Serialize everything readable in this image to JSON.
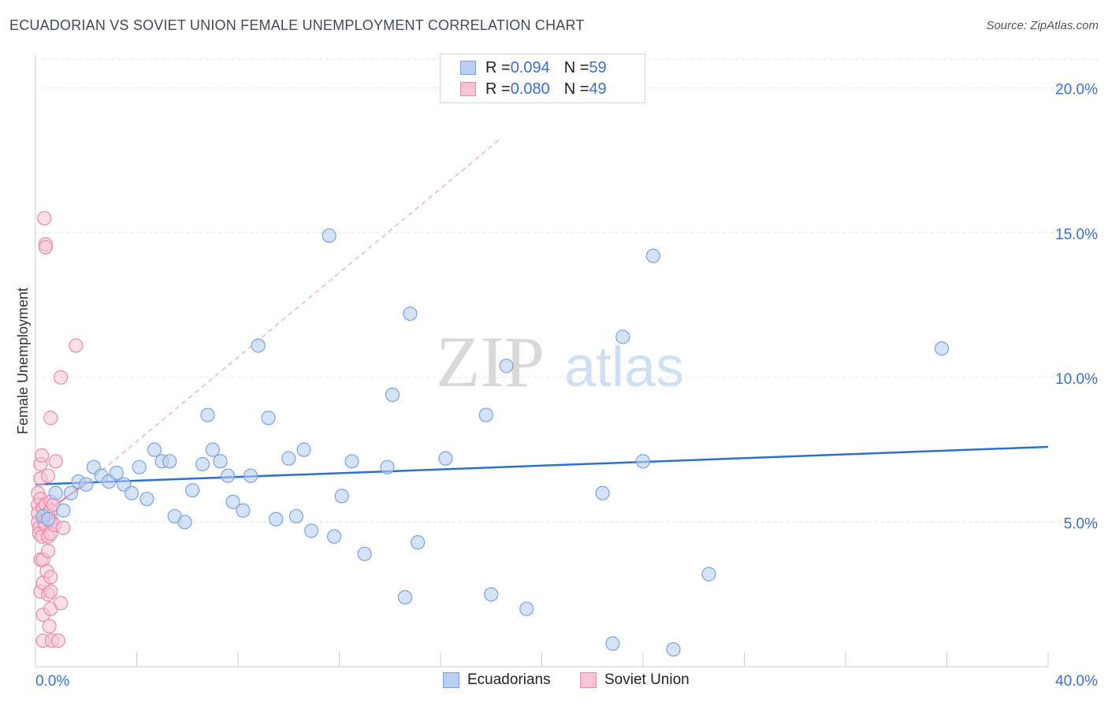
{
  "header": {
    "title": "ECUADORIAN VS SOVIET UNION FEMALE UNEMPLOYMENT CORRELATION CHART",
    "source": "Source: ZipAtlas.com"
  },
  "watermark": {
    "part1": "ZIP",
    "part2": "atlas"
  },
  "legend": {
    "rows": [
      {
        "r_label": "R = ",
        "r_value": "0.094",
        "n_label": "N = ",
        "n_value": "59"
      },
      {
        "r_label": "R = ",
        "r_value": "0.080",
        "n_label": "N = ",
        "n_value": "49"
      }
    ],
    "series": [
      "Ecuadorians",
      "Soviet Union"
    ]
  },
  "colors": {
    "blue_fill": "#b8d1f3",
    "blue_stroke": "#7aa3de",
    "blue_line": "#2f6fce",
    "pink_fill": "#f8c4d5",
    "pink_stroke": "#e68aa9",
    "pink_line": "#e36a94",
    "axis_label": "#3a6fd1",
    "grid": "#e3e3e3"
  },
  "chart_data": {
    "type": "scatter",
    "title": "ECUADORIAN VS SOVIET UNION FEMALE UNEMPLOYMENT CORRELATION CHART",
    "xlabel": "",
    "ylabel": "Female Unemployment",
    "xlim": [
      0,
      40
    ],
    "ylim": [
      0,
      21
    ],
    "x_tick_labels": [
      "0.0%",
      "40.0%"
    ],
    "y_ticks": [
      5,
      10,
      15,
      20
    ],
    "y_tick_labels": [
      "5.0%",
      "10.0%",
      "15.0%",
      "20.0%"
    ],
    "grid": true,
    "series": [
      {
        "name": "Ecuadorians",
        "r": 0.094,
        "n": 59,
        "trend": {
          "x": [
            0,
            40
          ],
          "y": [
            6.3,
            7.6
          ]
        },
        "points": [
          [
            0.3,
            5.2
          ],
          [
            0.5,
            5.1
          ],
          [
            0.8,
            6.0
          ],
          [
            1.1,
            5.4
          ],
          [
            1.4,
            6.0
          ],
          [
            1.7,
            6.4
          ],
          [
            2.0,
            6.3
          ],
          [
            2.3,
            6.9
          ],
          [
            2.6,
            6.6
          ],
          [
            2.9,
            6.4
          ],
          [
            3.2,
            6.7
          ],
          [
            3.5,
            6.3
          ],
          [
            3.8,
            6.0
          ],
          [
            4.1,
            6.9
          ],
          [
            4.4,
            5.8
          ],
          [
            4.7,
            7.5
          ],
          [
            5.0,
            7.1
          ],
          [
            5.3,
            7.1
          ],
          [
            5.5,
            5.2
          ],
          [
            5.9,
            5.0
          ],
          [
            6.2,
            6.1
          ],
          [
            6.6,
            7.0
          ],
          [
            6.8,
            8.7
          ],
          [
            7.0,
            7.5
          ],
          [
            7.3,
            7.1
          ],
          [
            7.6,
            6.6
          ],
          [
            7.8,
            5.7
          ],
          [
            8.2,
            5.4
          ],
          [
            8.5,
            6.6
          ],
          [
            8.8,
            11.1
          ],
          [
            9.2,
            8.6
          ],
          [
            9.5,
            5.1
          ],
          [
            10.0,
            7.2
          ],
          [
            10.3,
            5.2
          ],
          [
            10.6,
            7.5
          ],
          [
            10.9,
            4.7
          ],
          [
            11.6,
            14.9
          ],
          [
            11.8,
            4.5
          ],
          [
            12.1,
            5.9
          ],
          [
            12.5,
            7.1
          ],
          [
            13.0,
            3.9
          ],
          [
            13.9,
            6.9
          ],
          [
            14.1,
            9.4
          ],
          [
            14.6,
            2.4
          ],
          [
            14.8,
            12.2
          ],
          [
            15.1,
            4.3
          ],
          [
            16.2,
            7.2
          ],
          [
            17.8,
            8.7
          ],
          [
            18.0,
            2.5
          ],
          [
            18.6,
            10.4
          ],
          [
            19.4,
            2.0
          ],
          [
            22.4,
            6.0
          ],
          [
            22.8,
            0.8
          ],
          [
            23.2,
            11.4
          ],
          [
            24.0,
            7.1
          ],
          [
            24.4,
            14.2
          ],
          [
            25.2,
            0.6
          ],
          [
            26.6,
            3.2
          ],
          [
            35.8,
            11.0
          ]
        ]
      },
      {
        "name": "Soviet Union",
        "r": 0.08,
        "n": 49,
        "trend": {
          "x": [
            0,
            2.1
          ],
          "y": [
            5.1,
            6.4
          ]
        },
        "trend_extension": {
          "x": [
            2.1,
            18.3
          ],
          "y": [
            6.4,
            18.2
          ]
        },
        "points": [
          [
            0.1,
            6.0
          ],
          [
            0.1,
            5.6
          ],
          [
            0.1,
            5.3
          ],
          [
            0.1,
            5.0
          ],
          [
            0.15,
            4.8
          ],
          [
            0.15,
            4.6
          ],
          [
            0.2,
            6.5
          ],
          [
            0.2,
            7.0
          ],
          [
            0.2,
            3.7
          ],
          [
            0.2,
            2.6
          ],
          [
            0.2,
            5.8
          ],
          [
            0.25,
            7.3
          ],
          [
            0.25,
            4.5
          ],
          [
            0.3,
            5.5
          ],
          [
            0.3,
            2.9
          ],
          [
            0.3,
            3.7
          ],
          [
            0.3,
            1.8
          ],
          [
            0.3,
            0.9
          ],
          [
            0.35,
            15.5
          ],
          [
            0.35,
            5.0
          ],
          [
            0.4,
            14.6
          ],
          [
            0.4,
            14.5
          ],
          [
            0.4,
            5.6
          ],
          [
            0.4,
            4.9
          ],
          [
            0.45,
            3.3
          ],
          [
            0.5,
            6.6
          ],
          [
            0.5,
            5.3
          ],
          [
            0.5,
            4.0
          ],
          [
            0.5,
            4.5
          ],
          [
            0.5,
            2.5
          ],
          [
            0.55,
            1.4
          ],
          [
            0.6,
            5.7
          ],
          [
            0.6,
            5.1
          ],
          [
            0.6,
            3.1
          ],
          [
            0.6,
            2.6
          ],
          [
            0.65,
            0.9
          ],
          [
            0.6,
            5.4
          ],
          [
            0.6,
            5.0
          ],
          [
            0.6,
            4.6
          ],
          [
            0.7,
            5.6
          ],
          [
            0.75,
            4.9
          ],
          [
            0.8,
            7.1
          ],
          [
            0.6,
            8.6
          ],
          [
            0.6,
            2.0
          ],
          [
            0.9,
            0.9
          ],
          [
            1.0,
            2.2
          ],
          [
            1.0,
            10.0
          ],
          [
            1.1,
            4.8
          ],
          [
            1.6,
            11.1
          ]
        ]
      }
    ]
  }
}
